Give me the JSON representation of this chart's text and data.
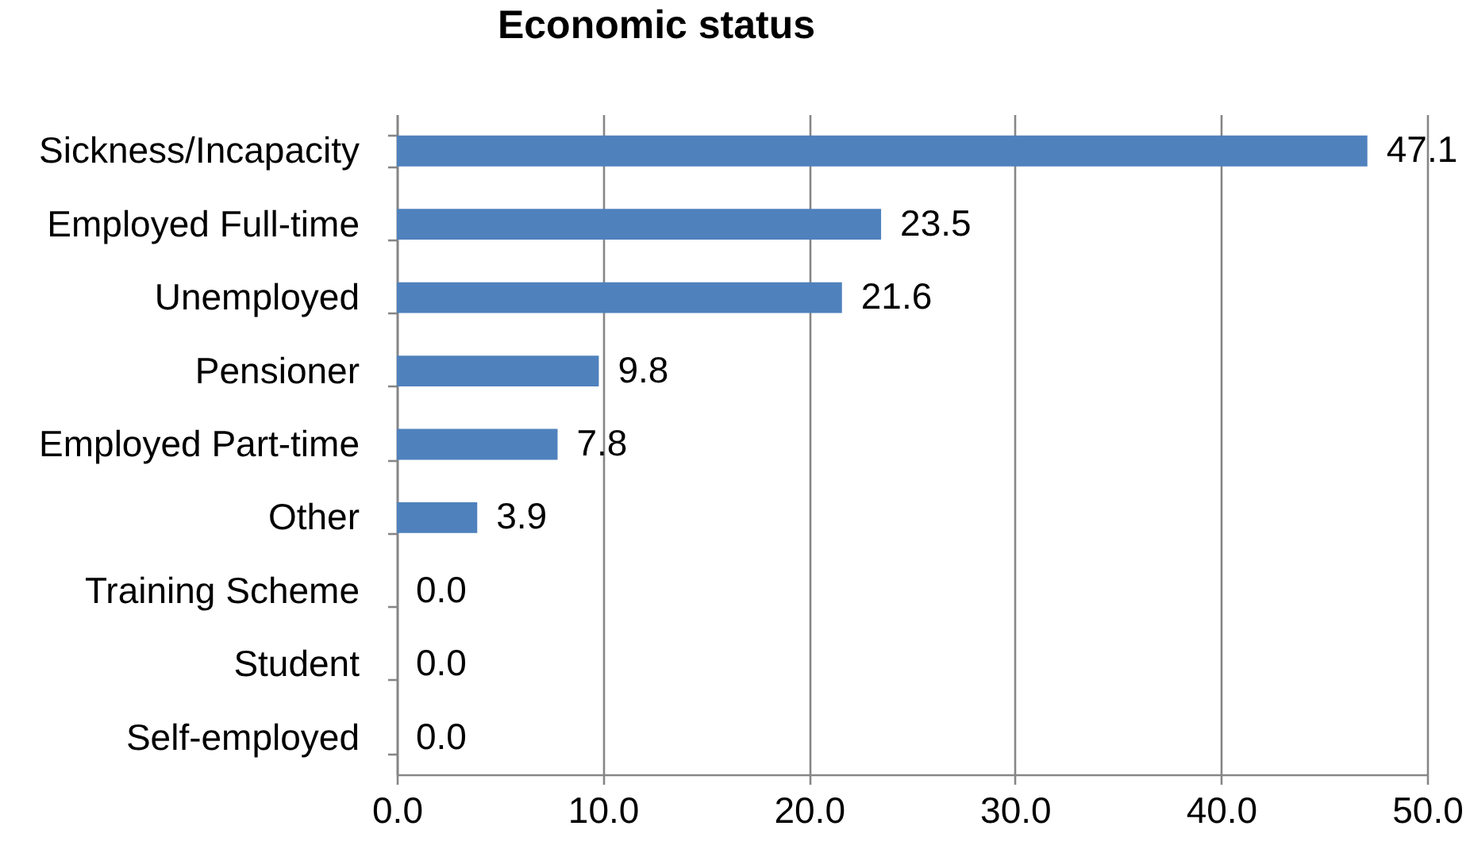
{
  "chart_data": {
    "type": "bar",
    "orientation": "horizontal",
    "title": "Economic status",
    "categories": [
      "Sickness/Incapacity",
      "Employed Full-time",
      "Unemployed",
      "Pensioner",
      "Employed Part-time",
      "Other",
      "Training Scheme",
      "Student",
      "Self-employed"
    ],
    "values": [
      47.1,
      23.5,
      21.6,
      9.8,
      7.8,
      3.9,
      0,
      0,
      0
    ],
    "value_labels": [
      "47.1",
      "23.5",
      "21.6",
      "9.8",
      "7.8",
      "3.9",
      "0.0",
      "0.0",
      "0.0"
    ],
    "color": "#4f81bd",
    "xlim": [
      0,
      50
    ],
    "xticks": [
      {
        "value": 0,
        "label": "0.0"
      },
      {
        "value": 10,
        "label": "10.0"
      },
      {
        "value": 20,
        "label": "20.0"
      },
      {
        "value": 30,
        "label": "30.0"
      },
      {
        "value": 40,
        "label": "40.0"
      },
      {
        "value": 50,
        "label": "50.0"
      }
    ],
    "grid": "x"
  }
}
